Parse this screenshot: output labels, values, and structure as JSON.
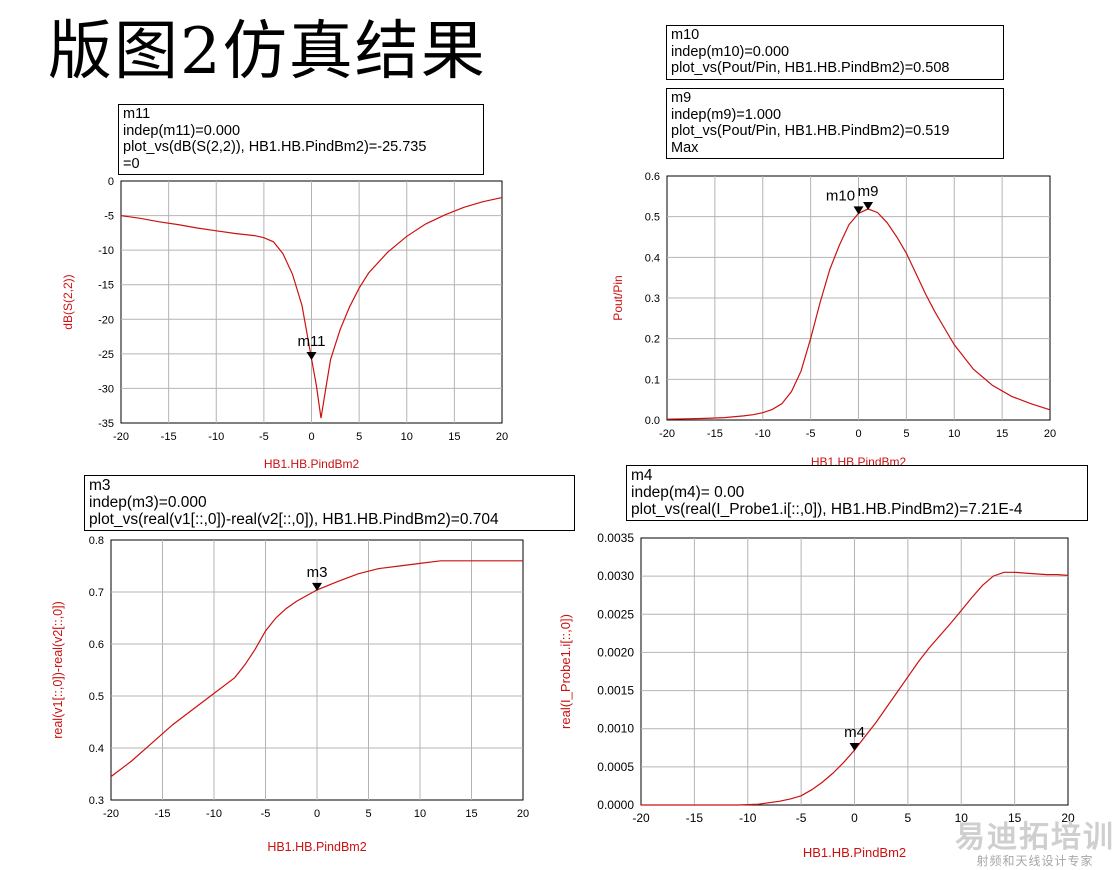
{
  "slide": {
    "title": "版图2仿真结果"
  },
  "watermark": {
    "name": "易迪拓培训",
    "slogan": "射频和天线设计专家"
  },
  "colors": {
    "curve": "#cc1111",
    "grid": "#b4b4b4",
    "axis_label": "#cc1111",
    "text": "#000000"
  },
  "markers": {
    "m11": [
      "m11",
      "indep(m11)=0.000",
      "plot_vs(dB(S(2,2)), HB1.HB.PindBm2)=-25.735",
      "=0"
    ],
    "m10": [
      "m10",
      "indep(m10)=0.000",
      "plot_vs(Pout/Pin, HB1.HB.PindBm2)=0.508"
    ],
    "m9": [
      "m9",
      "indep(m9)=1.000",
      "plot_vs(Pout/Pin, HB1.HB.PindBm2)=0.519",
      "Max"
    ],
    "m3": [
      "m3",
      "indep(m3)=0.000",
      "plot_vs(real(v1[::,0])-real(v2[::,0]), HB1.HB.PindBm2)=0.704"
    ],
    "m4": [
      "m4",
      "indep(m4)= 0.00",
      "plot_vs(real(I_Probe1.i[::,0]), HB1.HB.PindBm2)=7.21E-4"
    ]
  },
  "chart_data": [
    {
      "type": "line",
      "xlabel": "HB1.HB.PindBm2",
      "ylabel": "dB(S(2,2))",
      "xlim": [
        -20,
        20
      ],
      "ylim": [
        -35,
        0
      ],
      "xticks": [
        -20,
        -15,
        -10,
        -5,
        0,
        5,
        10,
        15,
        20
      ],
      "yticks": [
        0,
        -5,
        -10,
        -15,
        -20,
        -25,
        -30,
        -35
      ],
      "ytick_labels": [
        "0",
        "-5",
        "-10",
        "-15",
        "-20",
        "-25",
        "-30",
        "-35"
      ],
      "grid": true,
      "series": [
        {
          "x": [
            -20,
            -18,
            -16,
            -14,
            -12,
            -10,
            -8,
            -6,
            -5,
            -4,
            -3,
            -2,
            -1,
            0,
            0.5,
            1,
            1.5,
            2,
            3,
            4,
            5,
            6,
            8,
            10,
            12,
            14,
            16,
            18,
            20
          ],
          "values": [
            -5,
            -5.4,
            -5.9,
            -6.3,
            -6.8,
            -7.2,
            -7.6,
            -7.9,
            -8.2,
            -8.8,
            -10.5,
            -13.5,
            -18,
            -25.7,
            -29.5,
            -34.3,
            -30,
            -25.8,
            -21.5,
            -18.2,
            -15.5,
            -13.3,
            -10.3,
            -8,
            -6.2,
            -4.9,
            -3.8,
            -3.0,
            -2.4
          ]
        }
      ],
      "markers": [
        {
          "label": "m11",
          "x": 0,
          "y": -25.735
        }
      ]
    },
    {
      "type": "line",
      "xlabel": "HB1.HB.PindBm2",
      "ylabel": "Pout/Pin",
      "xlim": [
        -20,
        20
      ],
      "ylim": [
        0,
        0.6
      ],
      "xticks": [
        -20,
        -15,
        -10,
        -5,
        0,
        5,
        10,
        15,
        20
      ],
      "yticks": [
        0,
        0.1,
        0.2,
        0.3,
        0.4,
        0.5,
        0.6
      ],
      "ytick_labels": [
        "0.0",
        "0.1",
        "0.2",
        "0.3",
        "0.4",
        "0.5",
        "0.6"
      ],
      "grid": true,
      "series": [
        {
          "x": [
            -20,
            -18,
            -16,
            -14,
            -12,
            -11,
            -10,
            -9,
            -8,
            -7,
            -6,
            -5,
            -4,
            -3,
            -2,
            -1,
            0,
            1,
            2,
            3,
            4,
            5,
            6,
            7,
            8,
            9,
            10,
            12,
            14,
            16,
            18,
            20
          ],
          "values": [
            0.002,
            0.003,
            0.004,
            0.006,
            0.01,
            0.013,
            0.018,
            0.026,
            0.04,
            0.07,
            0.12,
            0.2,
            0.29,
            0.37,
            0.43,
            0.48,
            0.508,
            0.519,
            0.51,
            0.485,
            0.45,
            0.41,
            0.36,
            0.31,
            0.265,
            0.225,
            0.185,
            0.125,
            0.085,
            0.058,
            0.04,
            0.025
          ]
        }
      ],
      "markers": [
        {
          "label": "m10",
          "x": 0,
          "y": 0.508
        },
        {
          "label": "m9",
          "x": 1,
          "y": 0.519
        }
      ]
    },
    {
      "type": "line",
      "xlabel": "HB1.HB.PindBm2",
      "ylabel": "real(v1[::,0])-real(v2[::,0])",
      "xlim": [
        -20,
        20
      ],
      "ylim": [
        0.3,
        0.8
      ],
      "xticks": [
        -20,
        -15,
        -10,
        -5,
        0,
        5,
        10,
        15,
        20
      ],
      "yticks": [
        0.3,
        0.4,
        0.5,
        0.6,
        0.7,
        0.8
      ],
      "ytick_labels": [
        "0.3",
        "0.4",
        "0.5",
        "0.6",
        "0.7",
        "0.8"
      ],
      "grid": true,
      "series": [
        {
          "x": [
            -20,
            -18,
            -16,
            -14,
            -12,
            -10,
            -8,
            -7,
            -6,
            -5,
            -4,
            -3,
            -2,
            0,
            2,
            4,
            6,
            8,
            10,
            12,
            14,
            16,
            18,
            20
          ],
          "values": [
            0.345,
            0.375,
            0.41,
            0.445,
            0.475,
            0.505,
            0.535,
            0.56,
            0.59,
            0.625,
            0.65,
            0.668,
            0.682,
            0.704,
            0.72,
            0.735,
            0.745,
            0.75,
            0.755,
            0.76,
            0.76,
            0.76,
            0.76,
            0.76
          ]
        }
      ],
      "markers": [
        {
          "label": "m3",
          "x": 0,
          "y": 0.704
        }
      ]
    },
    {
      "type": "line",
      "xlabel": "HB1.HB.PindBm2",
      "ylabel": "real(I_Probe1.i[::,0])",
      "xlim": [
        -20,
        20
      ],
      "ylim": [
        0,
        0.0035
      ],
      "xticks": [
        -20,
        -15,
        -10,
        -5,
        0,
        5,
        10,
        15,
        20
      ],
      "yticks": [
        0,
        0.0005,
        0.001,
        0.0015,
        0.002,
        0.0025,
        0.003,
        0.0035
      ],
      "ytick_labels": [
        "0.0000",
        "0.0005",
        "0.0010",
        "0.0015",
        "0.0020",
        "0.0025",
        "0.0030",
        "0.0035"
      ],
      "grid": true,
      "series": [
        {
          "x": [
            -20,
            -15,
            -11,
            -10,
            -9,
            -8,
            -7,
            -6,
            -5,
            -4,
            -3,
            -2,
            -1,
            0,
            1,
            2,
            3,
            4,
            5,
            6,
            7,
            8,
            9,
            10,
            11,
            12,
            13,
            14,
            15,
            16,
            17,
            18,
            19,
            20
          ],
          "values": [
            0,
            0,
            0,
            5e-06,
            1e-05,
            3e-05,
            5e-05,
            8e-05,
            0.00012,
            0.0002,
            0.0003,
            0.00042,
            0.00056,
            0.00072,
            0.0009,
            0.00108,
            0.00128,
            0.00148,
            0.00168,
            0.00188,
            0.00206,
            0.00222,
            0.00238,
            0.00255,
            0.00272,
            0.00288,
            0.003,
            0.00305,
            0.00305,
            0.00304,
            0.00303,
            0.00302,
            0.00302,
            0.00301
          ]
        }
      ],
      "markers": [
        {
          "label": "m4",
          "x": 0,
          "y": 0.000721
        }
      ]
    }
  ]
}
